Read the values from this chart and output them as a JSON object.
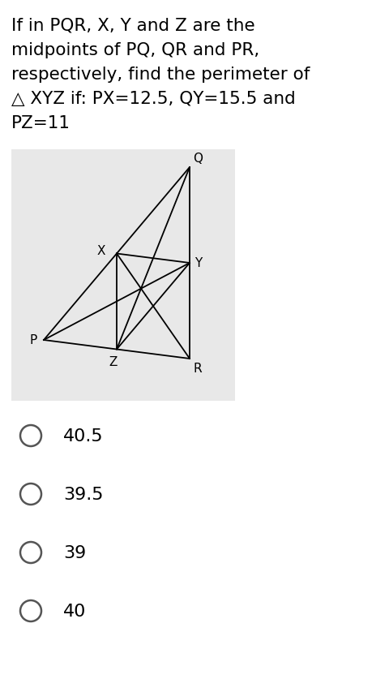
{
  "title_lines": [
    "If in PQR, X, Y and Z are the",
    "midpoints of PQ, QR and PR,",
    "respectively, find the perimeter of",
    "△ XYZ if: PX=12.5, QY=15.5 and",
    "PZ=11"
  ],
  "options": [
    "40.5",
    "39.5",
    "39",
    "40"
  ],
  "bg_color": "#ffffff",
  "diagram_bg": "#e8e8e8",
  "text_color": "#000000",
  "title_fontsize": 15.5,
  "option_fontsize": 16,
  "diagram_label_fontsize": 11,
  "P": [
    0.13,
    0.38
  ],
  "Q": [
    0.73,
    0.93
  ],
  "R": [
    0.73,
    0.12
  ]
}
